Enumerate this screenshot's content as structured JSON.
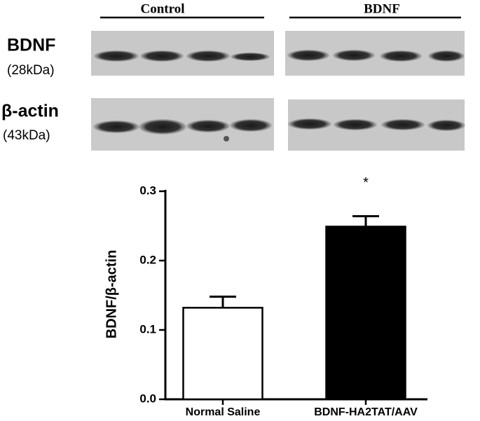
{
  "blot": {
    "groups": [
      "Control",
      "BDNF"
    ],
    "rows": [
      {
        "label": "BDNF",
        "sublabel": "(28kDa)"
      },
      {
        "label": "β-actin",
        "sublabel": "(43kDa)"
      }
    ]
  },
  "chart_data": {
    "type": "bar",
    "y_label": "BDNF/β-actin",
    "categories": [
      "Normal Saline",
      "BDNF-HA2TAT/AAV"
    ],
    "values": [
      0.132,
      0.249
    ],
    "errors": [
      0.016,
      0.015
    ],
    "colors": [
      "#ffffff",
      "#000000"
    ],
    "edge_color": "#000000",
    "annotation": "*",
    "ylim": [
      0,
      0.3
    ],
    "yticks": [
      {
        "value": 0,
        "label": "0.0"
      },
      0.1,
      0.2,
      0.3
    ]
  }
}
